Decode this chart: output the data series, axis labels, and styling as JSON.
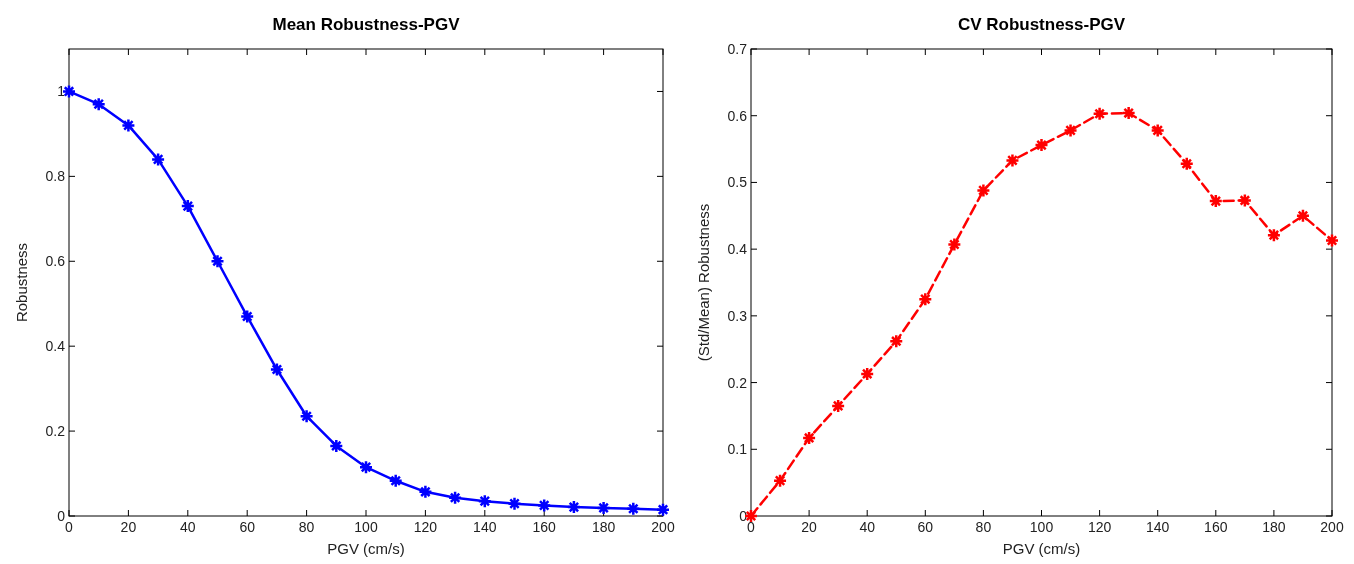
{
  "chart_data": [
    {
      "type": "line",
      "title": "Mean Robustness-PGV",
      "xlabel": "PGV (cm/s)",
      "ylabel": "Robustness",
      "x": [
        0,
        10,
        20,
        30,
        40,
        50,
        60,
        70,
        80,
        90,
        100,
        110,
        120,
        130,
        140,
        150,
        160,
        170,
        180,
        190,
        200
      ],
      "series": [
        {
          "color": "#0000ff",
          "values": [
            1.0,
            0.97,
            0.92,
            0.84,
            0.73,
            0.6,
            0.47,
            0.345,
            0.235,
            0.165,
            0.115,
            0.083,
            0.057,
            0.043,
            0.035,
            0.029,
            0.025,
            0.021,
            0.019,
            0.017,
            0.015
          ]
        }
      ],
      "xlim": [
        0,
        200
      ],
      "xticks": [
        0,
        20,
        40,
        60,
        80,
        100,
        120,
        140,
        160,
        180,
        200
      ],
      "ylim": [
        0,
        1.1
      ],
      "yticks": [
        0,
        0.2,
        0.4,
        0.6,
        0.8,
        1
      ],
      "grid": false,
      "marker": "cross",
      "line_style": "solid"
    },
    {
      "type": "line",
      "title": "CV Robustness-PGV",
      "xlabel": "PGV (cm/s)",
      "ylabel": "(Std/Mean) Robustness",
      "x": [
        0,
        10,
        20,
        30,
        40,
        50,
        60,
        70,
        80,
        90,
        100,
        110,
        120,
        130,
        140,
        150,
        160,
        170,
        180,
        190,
        200
      ],
      "series": [
        {
          "color": "#ff0000",
          "values": [
            0,
            0.053,
            0.117,
            0.165,
            0.213,
            0.262,
            0.325,
            0.407,
            0.488,
            0.533,
            0.556,
            0.578,
            0.603,
            0.604,
            0.578,
            0.528,
            0.472,
            0.473,
            0.421,
            0.45,
            0.413
          ]
        }
      ],
      "xlim": [
        0,
        200
      ],
      "xticks": [
        0,
        20,
        40,
        60,
        80,
        100,
        120,
        140,
        160,
        180,
        200
      ],
      "ylim": [
        0,
        0.7
      ],
      "yticks": [
        0,
        0.1,
        0.2,
        0.3,
        0.4,
        0.5,
        0.6,
        0.7
      ],
      "grid": false,
      "marker": "cross",
      "line_style": "dashed"
    }
  ]
}
